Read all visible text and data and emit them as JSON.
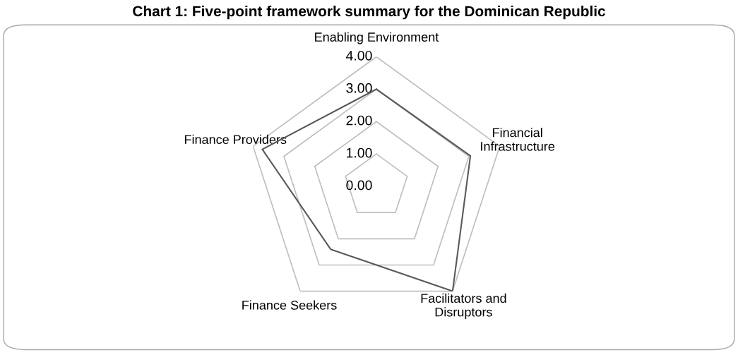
{
  "chart_data": {
    "type": "radar",
    "title": "Chart 1: Five-point framework summary for the Dominican Republic",
    "categories": [
      "Enabling Environment",
      "Financial\nInfrastructure",
      "Facilitators and\nDisruptors",
      "Finance Seekers",
      "Finance Providers"
    ],
    "series": [
      {
        "color": "#595959",
        "values": [
          3.0,
          3.05,
          4.0,
          2.4,
          3.7
        ]
      }
    ],
    "ylim": [
      0,
      4
    ],
    "yticks": [
      {
        "value": 0,
        "label": "0.00"
      },
      {
        "value": 1,
        "label": "1.00"
      },
      {
        "value": 2,
        "label": "2.00"
      },
      {
        "value": 3,
        "label": "3.00"
      },
      {
        "value": 4,
        "label": "4.00"
      }
    ],
    "grid": true,
    "marker": "none",
    "line_style": "solid"
  }
}
